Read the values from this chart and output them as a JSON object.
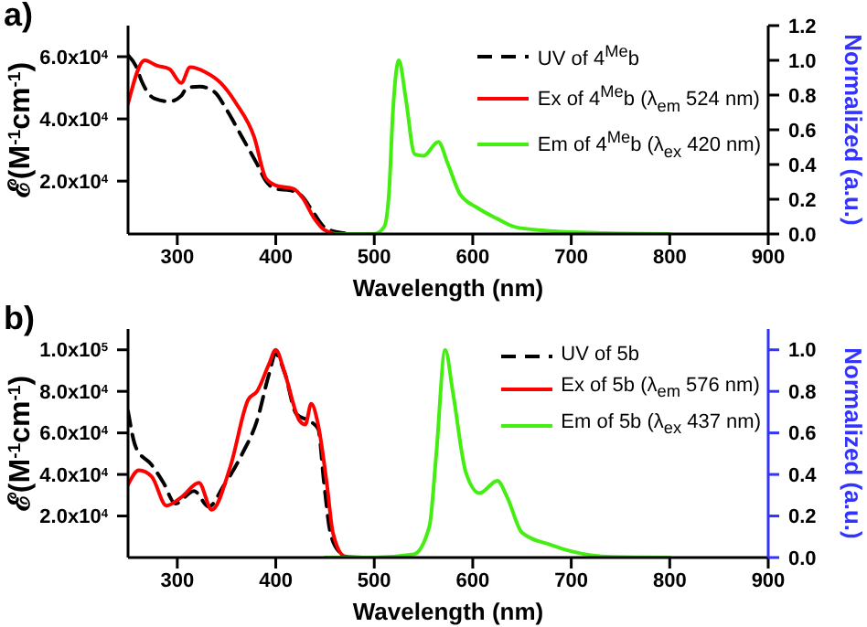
{
  "chart_data": [
    {
      "type": "line",
      "title": "a)",
      "xlabel": "Wavelength (nm)",
      "ylabel": "ℰ(M$^{-1}$cm$^{-1}$)",
      "y2label": "Normalized (a.u.)",
      "xlim": [
        250,
        900
      ],
      "xticks": [
        300,
        400,
        500,
        600,
        700,
        800,
        900
      ],
      "ylim": [
        3000,
        70000
      ],
      "yticks": [
        {
          "value": 20000,
          "label": "2.0x10$^{4}$"
        },
        {
          "value": 40000,
          "label": "4.0x10$^{4}$"
        },
        {
          "value": 60000,
          "label": "6.0x10$^{4}$"
        }
      ],
      "y2lim": [
        0,
        1.2
      ],
      "y2ticks": [
        {
          "value": 0,
          "label": "0.0"
        },
        {
          "value": 0.2,
          "label": "0.2"
        },
        {
          "value": 0.4,
          "label": "0.4"
        },
        {
          "value": 0.6,
          "label": "0.6"
        },
        {
          "value": 0.8,
          "label": "0.8"
        },
        {
          "value": 1,
          "label": "1.0"
        },
        {
          "value": 1.2,
          "label": "1.2"
        }
      ],
      "legend": "top right",
      "grid": false,
      "series": [
        {
          "name": "UV of 4$^{Me}$b",
          "color": "#000000",
          "line_style": "dashed",
          "x": [
            250,
            258,
            264,
            277,
            292,
            304,
            310,
            323,
            338,
            350,
            366,
            381,
            390,
            400,
            415,
            427,
            439,
            449,
            464,
            470
          ],
          "values": [
            60500,
            57000,
            52000,
            46500,
            45600,
            47400,
            50000,
            50400,
            48600,
            43000,
            34000,
            25500,
            20000,
            17500,
            17000,
            15000,
            9500,
            5300,
            3500,
            3200
          ]
        },
        {
          "name": "Ex of 4$^{Me}$b (λ$_{em}$ 524 nm)",
          "color": "#ff0000",
          "axis": "y2",
          "x": [
            250,
            267,
            279,
            292,
            304,
            313,
            329,
            344,
            360,
            378,
            390,
            400,
            418,
            427,
            439,
            449,
            464,
            500
          ],
          "values": [
            0.75,
            1.0,
            0.97,
            0.95,
            0.87,
            0.96,
            0.93,
            0.87,
            0.75,
            0.56,
            0.32,
            0.28,
            0.26,
            0.21,
            0.09,
            0.025,
            0,
            0
          ]
        },
        {
          "name": "Em of 4$^{Me}$b (λ$_{ex}$ 420 nm)",
          "color": "#44ee11",
          "axis": "y2",
          "x": [
            460,
            500,
            510,
            515,
            519,
            525,
            532,
            541,
            550,
            565,
            575,
            587,
            605,
            624,
            643,
            673,
            734,
            800
          ],
          "values": [
            0,
            0,
            0.04,
            0.24,
            0.71,
            1.0,
            0.78,
            0.46,
            0.45,
            0.53,
            0.4,
            0.23,
            0.15,
            0.09,
            0.04,
            0.02,
            0.005,
            0
          ]
        }
      ]
    },
    {
      "type": "line",
      "title": "b)",
      "xlabel": "Wavelength (nm)",
      "ylabel": "ℰ(M$^{-1}$cm$^{-1}$)",
      "y2label": "Normalized (a.u.)",
      "xlim": [
        250,
        900
      ],
      "xticks": [
        300,
        400,
        500,
        600,
        700,
        800,
        900
      ],
      "ylim": [
        0,
        110000
      ],
      "yticks": [
        {
          "value": 20000,
          "label": "2.0x10$^{4}$"
        },
        {
          "value": 40000,
          "label": "4.0x10$^{4}$"
        },
        {
          "value": 60000,
          "label": "6.0x10$^{4}$"
        },
        {
          "value": 80000,
          "label": "8.0x10$^{4}$"
        },
        {
          "value": 100000,
          "label": "1.0x10$^{5}$"
        }
      ],
      "y2lim": [
        0,
        1.1
      ],
      "y2ticks": [
        {
          "value": 0,
          "label": "0.0"
        },
        {
          "value": 0.2,
          "label": "0.2"
        },
        {
          "value": 0.4,
          "label": "0.4"
        },
        {
          "value": 0.6,
          "label": "0.6"
        },
        {
          "value": 0.8,
          "label": "0.8"
        },
        {
          "value": 1,
          "label": "1.0"
        }
      ],
      "legend": "top right",
      "grid": false,
      "series": [
        {
          "name": "UV of 5b",
          "color": "#000000",
          "line_style": "dashed",
          "x": [
            250,
            258,
            274,
            286,
            298,
            317,
            332,
            347,
            366,
            381,
            393,
            400,
            409,
            421,
            433,
            443,
            449,
            455,
            464,
            470
          ],
          "values": [
            70500,
            53000,
            44600,
            36000,
            26000,
            32000,
            24500,
            34500,
            50000,
            66000,
            88000,
            98000,
            89000,
            69000,
            66000,
            62000,
            36000,
            13000,
            3000,
            1500
          ]
        },
        {
          "name": "Ex of 5b (λ$_{em}$ 576 nm)",
          "color": "#ff0000",
          "axis": "y2",
          "x": [
            250,
            261,
            274,
            289,
            304,
            322,
            335,
            354,
            372,
            381,
            393,
            400,
            409,
            424,
            430,
            436,
            443,
            452,
            458,
            470,
            489
          ],
          "values": [
            0.35,
            0.42,
            0.39,
            0.25,
            0.29,
            0.36,
            0.23,
            0.44,
            0.76,
            0.8,
            0.93,
            1.0,
            0.89,
            0.66,
            0.64,
            0.74,
            0.64,
            0.35,
            0.12,
            0.006,
            0
          ]
        },
        {
          "name": "Em of 5b (λ$_{ex}$ 437 nm)",
          "color": "#44ee11",
          "axis": "y2",
          "x": [
            450,
            500,
            540,
            556,
            563,
            572,
            580,
            593,
            607,
            625,
            635,
            650,
            680,
            700,
            740,
            800
          ],
          "values": [
            0,
            0,
            0.015,
            0.15,
            0.5,
            1.0,
            0.79,
            0.41,
            0.31,
            0.37,
            0.29,
            0.12,
            0.06,
            0.03,
            0.003,
            0
          ]
        }
      ]
    }
  ]
}
